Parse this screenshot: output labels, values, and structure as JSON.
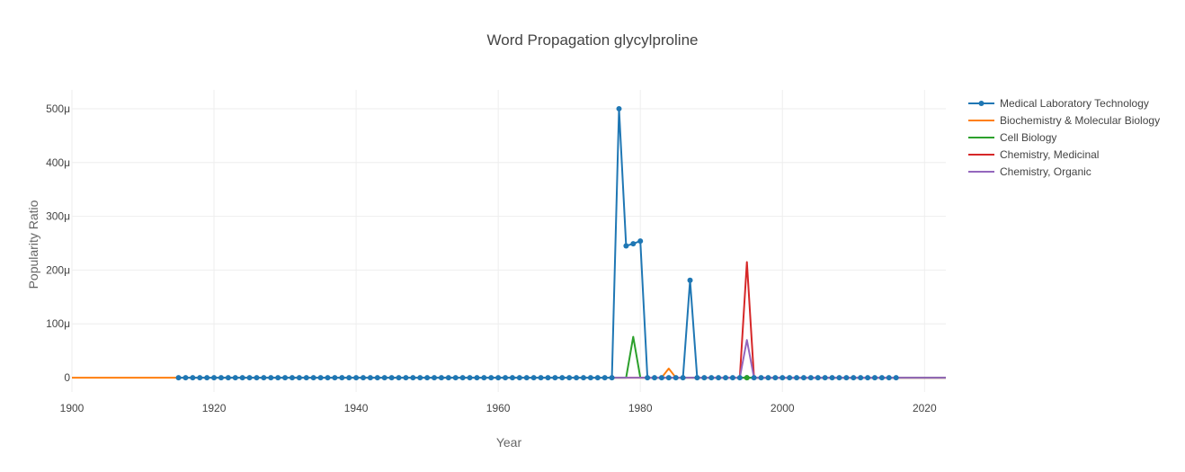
{
  "chart_data": {
    "type": "line",
    "title": "Word Propagation glycylproline",
    "xlabel": "Year",
    "ylabel": "Popularity Ratio",
    "xlim": [
      1900,
      2023
    ],
    "ylim": [
      -4e-05,
      0.000535
    ],
    "x_ticks": [
      1900,
      1920,
      1940,
      1960,
      1980,
      2000,
      2020
    ],
    "y_ticks": [
      0,
      0.0001,
      0.0002,
      0.0003,
      0.0004,
      0.0005
    ],
    "y_tick_labels": [
      "0",
      "100μ",
      "200μ",
      "300μ",
      "400μ",
      "500μ"
    ],
    "grid": true,
    "legend_position": "top-right",
    "series": [
      {
        "name": "Medical Laboratory Technology",
        "color": "#1f77b4",
        "markers": true,
        "x_range": [
          1915,
          2016
        ],
        "default": 0,
        "points": {
          "1977": 0.0005,
          "1978": 0.000245,
          "1979": 0.000249,
          "1980": 0.000254,
          "1987": 0.000181
        }
      },
      {
        "name": "Biochemistry & Molecular Biology",
        "color": "#ff7f0e",
        "markers": false,
        "x_range": [
          1900,
          2023
        ],
        "default": 0,
        "points": {
          "1984": 1.7e-05
        }
      },
      {
        "name": "Cell Biology",
        "color": "#2ca02c",
        "markers": false,
        "x_range": [
          1976,
          2023
        ],
        "default": 0,
        "points": {
          "1979": 7.6e-05
        }
      },
      {
        "name": "Chemistry, Medicinal",
        "color": "#d62728",
        "markers": false,
        "x_range": [
          1994,
          2023
        ],
        "default": 0,
        "points": {
          "1995": 0.000215
        }
      },
      {
        "name": "Chemistry, Organic",
        "color": "#9467bd",
        "markers": false,
        "x_range": [
          1976,
          2023
        ],
        "default": 0,
        "points": {
          "1995": 7e-05
        }
      }
    ]
  }
}
